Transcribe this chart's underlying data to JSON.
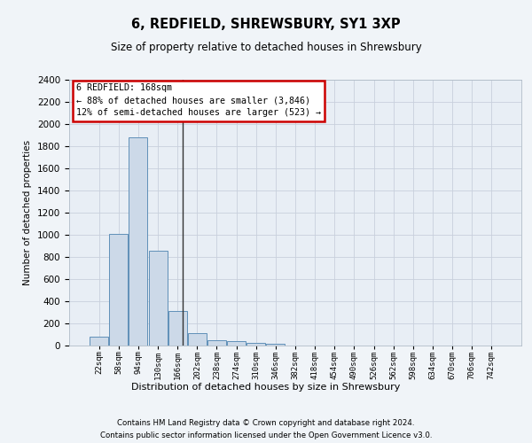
{
  "title": "6, REDFIELD, SHREWSBURY, SY1 3XP",
  "subtitle": "Size of property relative to detached houses in Shrewsbury",
  "xlabel": "Distribution of detached houses by size in Shrewsbury",
  "ylabel": "Number of detached properties",
  "footer_line1": "Contains HM Land Registry data © Crown copyright and database right 2024.",
  "footer_line2": "Contains public sector information licensed under the Open Government Licence v3.0.",
  "bin_labels": [
    "22sqm",
    "58sqm",
    "94sqm",
    "130sqm",
    "166sqm",
    "202sqm",
    "238sqm",
    "274sqm",
    "310sqm",
    "346sqm",
    "382sqm",
    "418sqm",
    "454sqm",
    "490sqm",
    "526sqm",
    "562sqm",
    "598sqm",
    "634sqm",
    "670sqm",
    "706sqm",
    "742sqm"
  ],
  "bar_values": [
    80,
    1010,
    1880,
    860,
    310,
    110,
    50,
    40,
    25,
    15,
    0,
    0,
    0,
    0,
    0,
    0,
    0,
    0,
    0,
    0,
    0
  ],
  "bar_color": "#ccd9e8",
  "bar_edge_color": "#6090b8",
  "grid_color": "#c8d0dc",
  "annotation_text": "6 REDFIELD: 168sqm\n← 88% of detached houses are smaller (3,846)\n12% of semi-detached houses are larger (523) →",
  "annotation_box_color": "#ffffff",
  "annotation_box_edge_color": "#cc0000",
  "vline_x_index": 4.25,
  "vline_color": "#333333",
  "ylim": [
    0,
    2400
  ],
  "yticks": [
    0,
    200,
    400,
    600,
    800,
    1000,
    1200,
    1400,
    1600,
    1800,
    2000,
    2200,
    2400
  ],
  "background_color": "#f0f4f8",
  "plot_background_color": "#e8eef5"
}
